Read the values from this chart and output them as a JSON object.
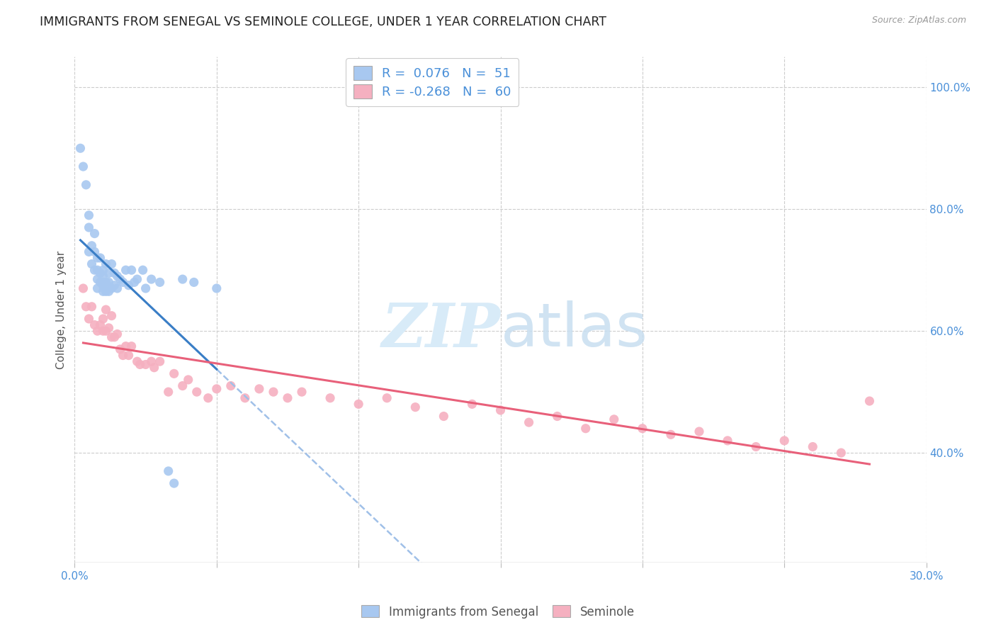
{
  "title": "IMMIGRANTS FROM SENEGAL VS SEMINOLE COLLEGE, UNDER 1 YEAR CORRELATION CHART",
  "source": "Source: ZipAtlas.com",
  "ylabel": "College, Under 1 year",
  "xlim": [
    0.0,
    0.3
  ],
  "ylim": [
    0.22,
    1.05
  ],
  "right_yticks": [
    0.4,
    0.6,
    0.8,
    1.0
  ],
  "right_yticklabels": [
    "40.0%",
    "60.0%",
    "80.0%",
    "100.0%"
  ],
  "xtick_positions": [
    0.0,
    0.05,
    0.1,
    0.15,
    0.2,
    0.25,
    0.3
  ],
  "xticklabels": [
    "0.0%",
    "",
    "",
    "",
    "",
    "",
    "30.0%"
  ],
  "legend_blue_label": "Immigrants from Senegal",
  "legend_pink_label": "Seminole",
  "r_blue": 0.076,
  "n_blue": 51,
  "r_pink": -0.268,
  "n_pink": 60,
  "blue_scatter_color": "#A8C8F0",
  "pink_scatter_color": "#F5B0C0",
  "blue_line_color": "#3A7EC6",
  "pink_line_color": "#E8607A",
  "blue_dash_color": "#A0C0E8",
  "watermark_color": "#D8EBF8",
  "blue_scatter_x": [
    0.002,
    0.003,
    0.004,
    0.005,
    0.005,
    0.005,
    0.006,
    0.006,
    0.007,
    0.007,
    0.007,
    0.008,
    0.008,
    0.008,
    0.008,
    0.009,
    0.009,
    0.009,
    0.01,
    0.01,
    0.01,
    0.01,
    0.01,
    0.011,
    0.011,
    0.011,
    0.012,
    0.012,
    0.012,
    0.013,
    0.013,
    0.014,
    0.014,
    0.015,
    0.015,
    0.016,
    0.017,
    0.018,
    0.019,
    0.02,
    0.021,
    0.022,
    0.024,
    0.025,
    0.027,
    0.03,
    0.033,
    0.035,
    0.038,
    0.042,
    0.05
  ],
  "blue_scatter_y": [
    0.9,
    0.87,
    0.84,
    0.79,
    0.77,
    0.73,
    0.74,
    0.71,
    0.76,
    0.73,
    0.7,
    0.72,
    0.7,
    0.685,
    0.67,
    0.72,
    0.695,
    0.68,
    0.7,
    0.69,
    0.68,
    0.675,
    0.665,
    0.71,
    0.68,
    0.665,
    0.695,
    0.68,
    0.665,
    0.71,
    0.67,
    0.695,
    0.675,
    0.69,
    0.67,
    0.685,
    0.68,
    0.7,
    0.675,
    0.7,
    0.68,
    0.685,
    0.7,
    0.67,
    0.685,
    0.68,
    0.37,
    0.35,
    0.685,
    0.68,
    0.67
  ],
  "pink_scatter_x": [
    0.003,
    0.004,
    0.005,
    0.006,
    0.007,
    0.008,
    0.009,
    0.01,
    0.01,
    0.011,
    0.011,
    0.012,
    0.013,
    0.013,
    0.014,
    0.015,
    0.016,
    0.017,
    0.018,
    0.019,
    0.02,
    0.022,
    0.023,
    0.025,
    0.027,
    0.028,
    0.03,
    0.033,
    0.035,
    0.038,
    0.04,
    0.043,
    0.047,
    0.05,
    0.055,
    0.06,
    0.065,
    0.07,
    0.075,
    0.08,
    0.09,
    0.1,
    0.11,
    0.12,
    0.13,
    0.14,
    0.15,
    0.16,
    0.17,
    0.18,
    0.19,
    0.2,
    0.21,
    0.22,
    0.23,
    0.24,
    0.25,
    0.26,
    0.27,
    0.28
  ],
  "pink_scatter_y": [
    0.67,
    0.64,
    0.62,
    0.64,
    0.61,
    0.6,
    0.61,
    0.62,
    0.6,
    0.635,
    0.6,
    0.605,
    0.625,
    0.59,
    0.59,
    0.595,
    0.57,
    0.56,
    0.575,
    0.56,
    0.575,
    0.55,
    0.545,
    0.545,
    0.55,
    0.54,
    0.55,
    0.5,
    0.53,
    0.51,
    0.52,
    0.5,
    0.49,
    0.505,
    0.51,
    0.49,
    0.505,
    0.5,
    0.49,
    0.5,
    0.49,
    0.48,
    0.49,
    0.475,
    0.46,
    0.48,
    0.47,
    0.45,
    0.46,
    0.44,
    0.455,
    0.44,
    0.43,
    0.435,
    0.42,
    0.41,
    0.42,
    0.41,
    0.4,
    0.485
  ]
}
